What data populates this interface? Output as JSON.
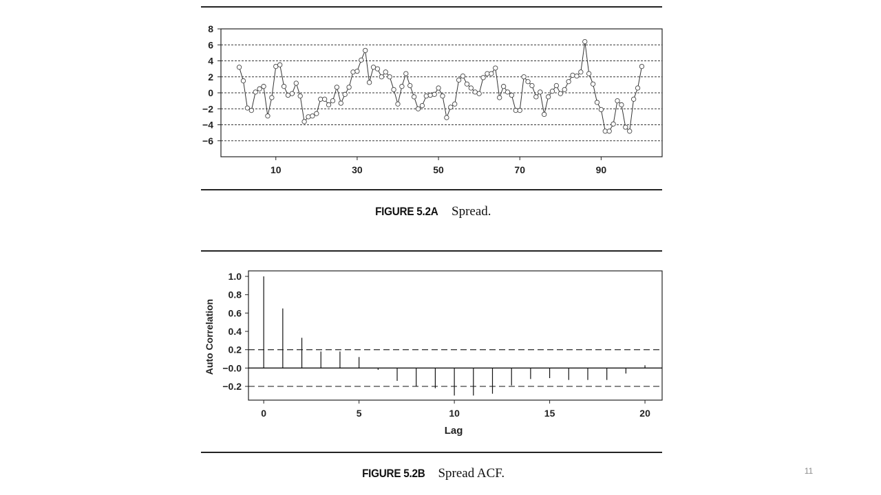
{
  "slide_number": "11",
  "figure_a": {
    "number": "FIGURE 5.2A",
    "caption": "Spread."
  },
  "figure_b": {
    "number": "FIGURE 5.2B",
    "caption": "Spread ACF."
  },
  "chart_data": [
    {
      "type": "line",
      "title": "",
      "xlabel": "",
      "ylabel": "",
      "xlim": [
        -3.5,
        105
      ],
      "ylim": [
        -8,
        8
      ],
      "x_ticks": [
        10,
        30,
        50,
        70,
        90
      ],
      "y_ticks": [
        8,
        6,
        4,
        2,
        0,
        -2,
        -4,
        -6
      ],
      "y_tick_labels": [
        "8",
        "6",
        "4",
        "2",
        "0",
        "−2",
        "−4",
        "−6"
      ],
      "grid": "horizontal dashed at 6, 4, 2, 0, -2, -4, -6",
      "marker": "open circle",
      "x": [
        1,
        2,
        3,
        4,
        5,
        6,
        7,
        8,
        9,
        10,
        11,
        12,
        13,
        14,
        15,
        16,
        17,
        18,
        19,
        20,
        21,
        22,
        23,
        24,
        25,
        26,
        27,
        28,
        29,
        30,
        31,
        32,
        33,
        34,
        35,
        36,
        37,
        38,
        39,
        40,
        41,
        42,
        43,
        44,
        45,
        46,
        47,
        48,
        49,
        50,
        51,
        52,
        53,
        54,
        55,
        56,
        57,
        58,
        59,
        60,
        61,
        62,
        63,
        64,
        65,
        66,
        67,
        68,
        69,
        70,
        71,
        72,
        73,
        74,
        75,
        76,
        77,
        78,
        79,
        80,
        81,
        82,
        83,
        84,
        85,
        86,
        87,
        88,
        89,
        90,
        91,
        92,
        93,
        94,
        95,
        96,
        97,
        98,
        99,
        100
      ],
      "y": [
        3.2,
        1.5,
        -1.9,
        -2.2,
        0.1,
        0.5,
        0.8,
        -2.9,
        -0.6,
        3.3,
        3.5,
        0.8,
        -0.3,
        -0.1,
        1.2,
        -0.4,
        -3.6,
        -3.0,
        -2.9,
        -2.6,
        -0.8,
        -0.8,
        -1.5,
        -1.0,
        0.7,
        -1.3,
        -0.2,
        0.7,
        2.6,
        2.7,
        4.1,
        5.3,
        1.3,
        3.2,
        3.0,
        2.0,
        2.6,
        2.0,
        0.4,
        -1.4,
        0.8,
        2.4,
        0.9,
        -0.5,
        -2.0,
        -1.6,
        -0.4,
        -0.3,
        -0.2,
        0.6,
        -0.4,
        -3.1,
        -1.8,
        -1.4,
        1.6,
        2.1,
        1.1,
        0.6,
        0.1,
        -0.1,
        1.9,
        2.4,
        2.4,
        3.1,
        -0.6,
        0.8,
        0.1,
        -0.3,
        -2.2,
        -2.2,
        2.0,
        1.4,
        0.9,
        -0.5,
        0.1,
        -2.7,
        -0.5,
        0.2,
        0.9,
        -0.1,
        0.4,
        1.4,
        2.2,
        2.1,
        2.6,
        6.4,
        2.4,
        1.1,
        -1.2,
        -2.1,
        -4.8,
        -4.8,
        -3.9,
        -1.0,
        -1.5,
        -4.3,
        -4.8,
        -0.8,
        0.6,
        3.3
      ]
    },
    {
      "type": "bar",
      "title": "",
      "xlabel": "Lag",
      "ylabel": "Auto Correlation",
      "xlim": [
        -0.8,
        20.9
      ],
      "ylim": [
        -0.35,
        1.06
      ],
      "x_ticks": [
        0,
        5,
        10,
        15,
        20
      ],
      "y_ticks": [
        1.0,
        0.8,
        0.6,
        0.4,
        0.2,
        0.0,
        -0.2
      ],
      "y_tick_labels": [
        "1.0",
        "0.8",
        "0.6",
        "0.4",
        "0.2",
        "−0.0",
        "−0.2"
      ],
      "confidence_band": [
        -0.2,
        0.2
      ],
      "grid": "off",
      "categories": [
        0,
        1,
        2,
        3,
        4,
        5,
        6,
        7,
        8,
        9,
        10,
        11,
        12,
        13,
        14,
        15,
        16,
        17,
        18,
        19,
        20
      ],
      "values": [
        1.0,
        0.65,
        0.33,
        0.18,
        0.18,
        0.12,
        -0.02,
        -0.14,
        -0.2,
        -0.22,
        -0.3,
        -0.3,
        -0.28,
        -0.19,
        -0.12,
        -0.11,
        -0.13,
        -0.13,
        -0.13,
        -0.06,
        0.03
      ]
    }
  ]
}
